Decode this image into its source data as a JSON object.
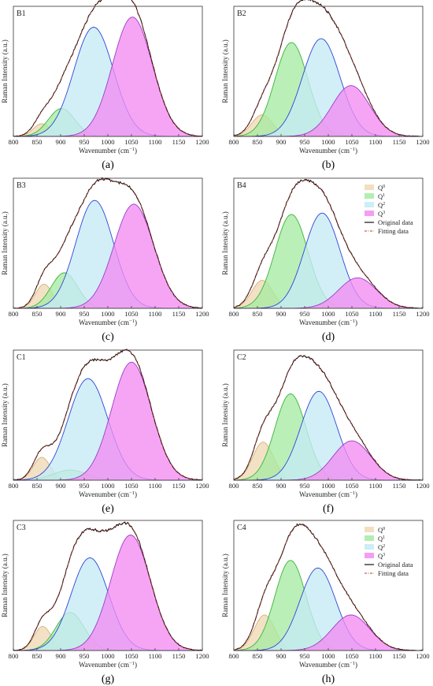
{
  "colors": {
    "q0": "#f0d9b5",
    "q1": "#a6eba3",
    "q2": "#c5eaf6",
    "q3": "#f38cf2",
    "q0_line": "#d6b27a",
    "q1_line": "#3ab53a",
    "q2_line": "#2d45d8",
    "q3_line": "#9b3dc8",
    "original": "#111111",
    "fitting": "#c0392b"
  },
  "axes": {
    "xlabel": "Wavenumber (cm",
    "xlabel_sup": "−1",
    "xlabel_end": ")",
    "ylabel": "Raman Intensity (a.u.)",
    "xlim": [
      800,
      1200
    ],
    "xticks": [
      800,
      850,
      900,
      950,
      1000,
      1050,
      1100,
      1150,
      1200
    ],
    "ylim": [
      0,
      1
    ]
  },
  "legend": {
    "items": [
      {
        "key": "q0",
        "base": "Q",
        "sup": "0"
      },
      {
        "key": "q1",
        "base": "Q",
        "sup": "1"
      },
      {
        "key": "q2",
        "base": "Q",
        "sup": "2"
      },
      {
        "key": "q3",
        "base": "Q",
        "sup": "3"
      }
    ],
    "original": "Original data",
    "fitting": "Fitting data"
  },
  "chart_data": [
    {
      "type": "area",
      "label": "B1",
      "caption": "(a)",
      "legend": false,
      "peaks": [
        {
          "key": "q0",
          "center": 860,
          "width": 18,
          "height": 0.1
        },
        {
          "key": "q1",
          "center": 902,
          "width": 28,
          "height": 0.22
        },
        {
          "key": "q2",
          "center": 970,
          "width": 42,
          "height": 0.86
        },
        {
          "key": "q3",
          "center": 1052,
          "width": 42,
          "height": 0.94
        }
      ]
    },
    {
      "type": "area",
      "label": "B2",
      "caption": "(b)",
      "legend": false,
      "peaks": [
        {
          "key": "q0",
          "center": 860,
          "width": 22,
          "height": 0.17
        },
        {
          "key": "q1",
          "center": 922,
          "width": 35,
          "height": 0.74
        },
        {
          "key": "q2",
          "center": 985,
          "width": 40,
          "height": 0.77
        },
        {
          "key": "q3",
          "center": 1048,
          "width": 40,
          "height": 0.4
        }
      ]
    },
    {
      "type": "area",
      "label": "B3",
      "caption": "(c)",
      "legend": false,
      "peaks": [
        {
          "key": "q0",
          "center": 865,
          "width": 18,
          "height": 0.19
        },
        {
          "key": "q1",
          "center": 908,
          "width": 28,
          "height": 0.28
        },
        {
          "key": "q2",
          "center": 972,
          "width": 40,
          "height": 0.85
        },
        {
          "key": "q3",
          "center": 1055,
          "width": 42,
          "height": 0.82
        }
      ]
    },
    {
      "type": "area",
      "label": "B4",
      "caption": "(d)",
      "legend": true,
      "peaks": [
        {
          "key": "q0",
          "center": 860,
          "width": 22,
          "height": 0.22
        },
        {
          "key": "q1",
          "center": 922,
          "width": 35,
          "height": 0.74
        },
        {
          "key": "q2",
          "center": 987,
          "width": 38,
          "height": 0.75
        },
        {
          "key": "q3",
          "center": 1062,
          "width": 40,
          "height": 0.24
        }
      ]
    },
    {
      "type": "area",
      "label": "C1",
      "caption": "(e)",
      "legend": false,
      "peaks": [
        {
          "key": "q0",
          "center": 860,
          "width": 18,
          "height": 0.18
        },
        {
          "key": "q1",
          "center": 920,
          "width": 35,
          "height": 0.08
        },
        {
          "key": "q2",
          "center": 958,
          "width": 42,
          "height": 0.8
        },
        {
          "key": "q3",
          "center": 1050,
          "width": 42,
          "height": 0.93
        }
      ]
    },
    {
      "type": "area",
      "label": "C2",
      "caption": "(f)",
      "legend": false,
      "peaks": [
        {
          "key": "q0",
          "center": 862,
          "width": 22,
          "height": 0.3
        },
        {
          "key": "q1",
          "center": 920,
          "width": 33,
          "height": 0.68
        },
        {
          "key": "q2",
          "center": 980,
          "width": 38,
          "height": 0.7
        },
        {
          "key": "q3",
          "center": 1050,
          "width": 40,
          "height": 0.31
        }
      ]
    },
    {
      "type": "area",
      "label": "C3",
      "caption": "(g)",
      "legend": false,
      "peaks": [
        {
          "key": "q0",
          "center": 862,
          "width": 18,
          "height": 0.19
        },
        {
          "key": "q1",
          "center": 920,
          "width": 30,
          "height": 0.3
        },
        {
          "key": "q2",
          "center": 962,
          "width": 40,
          "height": 0.73
        },
        {
          "key": "q3",
          "center": 1048,
          "width": 42,
          "height": 0.91
        }
      ]
    },
    {
      "type": "area",
      "label": "C4",
      "caption": "(h)",
      "legend": true,
      "peaks": [
        {
          "key": "q0",
          "center": 865,
          "width": 22,
          "height": 0.28
        },
        {
          "key": "q1",
          "center": 920,
          "width": 33,
          "height": 0.71
        },
        {
          "key": "q2",
          "center": 978,
          "width": 38,
          "height": 0.65
        },
        {
          "key": "q3",
          "center": 1048,
          "width": 40,
          "height": 0.28
        }
      ]
    }
  ]
}
